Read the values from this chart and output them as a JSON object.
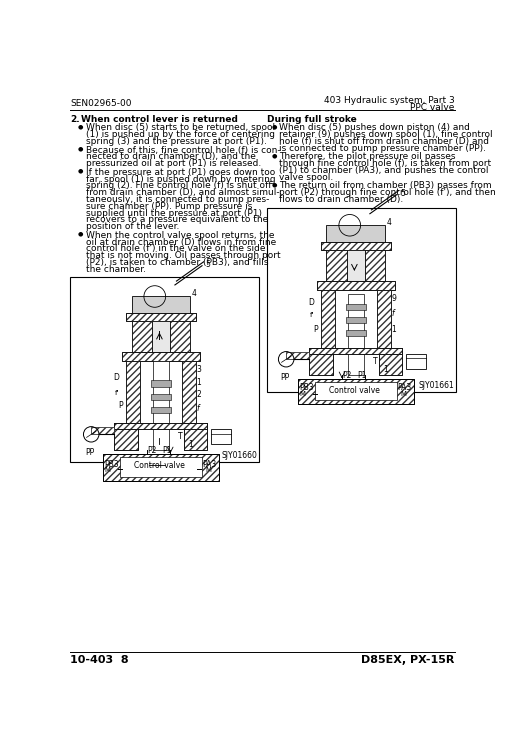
{
  "page_id_left": "SEN02965-00",
  "page_header_right_line1": "403 Hydraulic system, Part 3",
  "page_header_right_line2": "PPC valve",
  "page_footer_left": "10-403  8",
  "page_footer_right": "D85EX, PX-15R",
  "section_title_num": "2.",
  "section_title_text": "When control lever is returned",
  "left_bullets": [
    "When disc (5) starts to be returned, spool (1) is pushed up by the force of centering spring (3) and the pressure at port (P1).",
    "Because of this, fine control hole (f) is con-\nnected to drain chamber (D), and the\npressurized oil at port (P1) is released.",
    "If the pressure at port (P1) goes down too\nfar, spool (1) is pushed down by metering\nspring (2). Fine control hole (f) is shut off\nfrom drain chamber (D), and almost simul-\ntaneously, it is connected to pump pres-\nsure chamber (PP). Pump pressure is\nsupplied until the pressure at port (P1)\nrecovers to a pressure equivalent to the\nposition of the lever.",
    "When the control valve spool returns, the\noil at drain chamber (D) flows in from fine\ncontrol hole (f') in the valve on the side\nthat is not moving. Oil passes through port\n(P2), is taken to chamber (PB3), and fills\nthe chamber."
  ],
  "right_section_title": "During full stroke",
  "right_bullets": [
    "When disc (5) pushes down piston (4) and\nretainer (9) pushes down spool (1), fine control\nhole (f) is shut off from drain chamber (D) and\nis connected to pump pressure chamber (PP).",
    "Therefore, the pilot pressure oil passes\nthrough fine control hole (f), is taken from port\n(P1) to chamber (PA3), and pushes the control\nvalve spool.",
    "The return oil from chamber (PB3) passes from\nport (P2) through fine control hole (f'), and then\nflows to drain chamber (D)."
  ],
  "left_diagram_label": "SJY01660",
  "right_diagram_label": "SJY01661",
  "bg_color": "#ffffff",
  "text_color": "#000000",
  "diag_edge": "#000000",
  "diag_hatch": "#555555",
  "diag_fill": "#cccccc"
}
